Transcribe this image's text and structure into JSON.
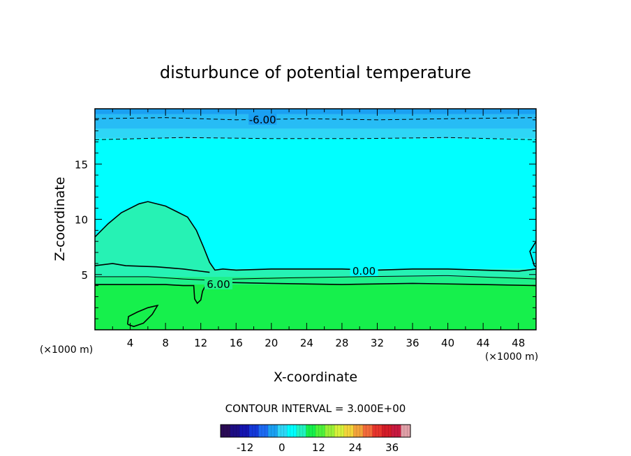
{
  "chart_data": {
    "type": "contour",
    "title": "disturbunce of potential temperature",
    "xlabel": "X-coordinate",
    "ylabel": "Z-coordinate",
    "x_unit_left": "(×1000 m)",
    "x_unit_right": "(×1000 m)",
    "xlim": [
      0,
      50
    ],
    "ylim": [
      0,
      20
    ],
    "xticks": [
      4,
      8,
      12,
      16,
      20,
      24,
      28,
      32,
      36,
      40,
      44,
      48
    ],
    "yticks": [
      5,
      10,
      15
    ],
    "contour_interval_text": "CONTOUR INTERVAL = 3.000E+00",
    "contour_labels": [
      {
        "text": "-6.00",
        "x": 19,
        "z": 19.0
      },
      {
        "text": "0.00",
        "x": 30.5,
        "z": 5.3
      },
      {
        "text": "6.00",
        "x": 14,
        "z": 4.1
      }
    ],
    "contours": [
      {
        "level": -6,
        "style": "dashed",
        "points": [
          [
            0,
            19.1
          ],
          [
            8,
            19.2
          ],
          [
            16,
            19.0
          ],
          [
            24,
            19.1
          ],
          [
            32,
            19.0
          ],
          [
            40,
            19.1
          ],
          [
            50,
            19.2
          ]
        ]
      },
      {
        "level": -3,
        "style": "dashed",
        "points": [
          [
            0,
            17.2
          ],
          [
            10,
            17.4
          ],
          [
            20,
            17.3
          ],
          [
            30,
            17.3
          ],
          [
            40,
            17.4
          ],
          [
            50,
            17.2
          ]
        ]
      },
      {
        "level": 0,
        "style": "solid",
        "points": [
          [
            0,
            8.4
          ],
          [
            1.5,
            9.6
          ],
          [
            3,
            10.6
          ],
          [
            5,
            11.4
          ],
          [
            6,
            11.6
          ],
          [
            8,
            11.2
          ],
          [
            10.5,
            10.2
          ],
          [
            11.5,
            9.0
          ],
          [
            12.3,
            7.5
          ],
          [
            13,
            6.1
          ],
          [
            13.6,
            5.4
          ],
          [
            14.5,
            5.5
          ],
          [
            16,
            5.4
          ],
          [
            20,
            5.5
          ],
          [
            24,
            5.5
          ],
          [
            28,
            5.5
          ],
          [
            32,
            5.4
          ],
          [
            36,
            5.5
          ],
          [
            40,
            5.5
          ],
          [
            44,
            5.4
          ],
          [
            48,
            5.3
          ],
          [
            50,
            5.5
          ]
        ]
      },
      {
        "level": 0,
        "style": "solid",
        "points": [
          [
            0,
            5.8
          ],
          [
            2,
            6.0
          ],
          [
            3.5,
            5.8
          ],
          [
            7,
            5.7
          ],
          [
            10,
            5.5
          ],
          [
            12,
            5.3
          ],
          [
            13,
            5.2
          ]
        ]
      },
      {
        "level": 0,
        "style": "solid",
        "points": [
          [
            50,
            8.0
          ],
          [
            49.3,
            7.1
          ],
          [
            49.8,
            5.8
          ],
          [
            50,
            5.7
          ]
        ]
      },
      {
        "level": 3,
        "style": "solid",
        "points": [
          [
            0,
            4.8
          ],
          [
            6,
            4.8
          ],
          [
            10,
            4.6
          ],
          [
            12.5,
            4.5
          ],
          [
            16,
            4.6
          ],
          [
            22,
            4.7
          ],
          [
            30,
            4.8
          ],
          [
            40,
            4.9
          ],
          [
            50,
            4.6
          ]
        ]
      },
      {
        "level": 6,
        "style": "solid",
        "points": [
          [
            0,
            4.1
          ],
          [
            4,
            4.1
          ],
          [
            8,
            4.1
          ],
          [
            10,
            4.0
          ],
          [
            11.2,
            4.0
          ],
          [
            11.3,
            2.8
          ],
          [
            11.6,
            2.4
          ],
          [
            12,
            2.7
          ],
          [
            12.2,
            3.5
          ],
          [
            12.6,
            4.1
          ],
          [
            14,
            4.3
          ],
          [
            20,
            4.2
          ],
          [
            28,
            4.1
          ],
          [
            36,
            4.2
          ],
          [
            44,
            4.1
          ],
          [
            50,
            4.0
          ]
        ]
      },
      {
        "level": 6,
        "style": "solid",
        "points": [
          [
            3.7,
            0.5
          ],
          [
            3.8,
            1.2
          ],
          [
            4.8,
            1.6
          ],
          [
            6.0,
            2.0
          ],
          [
            7.1,
            2.2
          ],
          [
            6.5,
            1.4
          ],
          [
            5.5,
            0.6
          ],
          [
            4.4,
            0.3
          ],
          [
            3.7,
            0.5
          ]
        ]
      }
    ],
    "fill_bands": [
      {
        "z_from": 19.5,
        "z_to": 20,
        "color": "#1aa0f2"
      },
      {
        "z_from": 18.2,
        "z_to": 19.5,
        "color": "#27bcf5"
      },
      {
        "z_from": 17.3,
        "z_to": 18.2,
        "color": "#2ed6f6"
      },
      {
        "z_from": 5.5,
        "z_to": 17.3,
        "color": "#00ffff"
      },
      {
        "z_from": 4.8,
        "z_to": 5.5,
        "color": "#20f2c0"
      },
      {
        "z_from": 4.1,
        "z_to": 4.8,
        "color": "#1ff08a"
      },
      {
        "z_from": 0,
        "z_to": 4.1,
        "color": "#16f04c"
      }
    ],
    "region_fill": {
      "level": 0,
      "color": "#26f2b4"
    },
    "colorbar": {
      "ticks": [
        "-12",
        "0",
        "12",
        "24",
        "36"
      ],
      "tick_values": [
        -12,
        0,
        12,
        24,
        36
      ],
      "range": [
        -20,
        42
      ],
      "colors": [
        "#2a0a55",
        "#1d0d84",
        "#1414b0",
        "#1438d8",
        "#1c6af2",
        "#1aa0f2",
        "#2ed6f6",
        "#00ffff",
        "#20f2c0",
        "#16f04c",
        "#4ef23a",
        "#9af036",
        "#d6f03a",
        "#f2d43a",
        "#f2a23a",
        "#f26a3a",
        "#e6342c",
        "#d41c28",
        "#c81a40",
        "#e0a0a8"
      ]
    }
  }
}
